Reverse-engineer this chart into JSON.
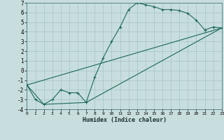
{
  "xlabel": "Humidex (Indice chaleur)",
  "bg_color": "#c8dede",
  "grid_color": "#a8c8c8",
  "line_color": "#1e6858",
  "xlim": [
    0,
    23
  ],
  "ylim": [
    -4,
    7
  ],
  "xticks": [
    0,
    1,
    2,
    3,
    4,
    5,
    6,
    7,
    8,
    9,
    10,
    11,
    12,
    13,
    14,
    15,
    16,
    17,
    18,
    19,
    20,
    21,
    22,
    23
  ],
  "yticks": [
    -4,
    -3,
    -2,
    -1,
    0,
    1,
    2,
    3,
    4,
    5,
    6,
    7
  ],
  "curve1_x": [
    0,
    1,
    2,
    3,
    4,
    5,
    6,
    7,
    8,
    9,
    10,
    11,
    12,
    13,
    14,
    15,
    16,
    17,
    18,
    19,
    20,
    21,
    22,
    23
  ],
  "curve1_y": [
    -1.5,
    -3.0,
    -3.5,
    -3.0,
    -2.0,
    -2.3,
    -2.3,
    -3.3,
    -0.7,
    1.3,
    3.0,
    4.5,
    6.3,
    7.0,
    6.8,
    6.6,
    6.3,
    6.3,
    6.2,
    5.9,
    5.2,
    4.2,
    4.5,
    4.4
  ],
  "curve2_x": [
    0,
    23
  ],
  "curve2_y": [
    -1.5,
    4.4
  ],
  "curve3_x": [
    0,
    2,
    7,
    23
  ],
  "curve3_y": [
    -1.5,
    -3.5,
    -3.3,
    4.4
  ]
}
